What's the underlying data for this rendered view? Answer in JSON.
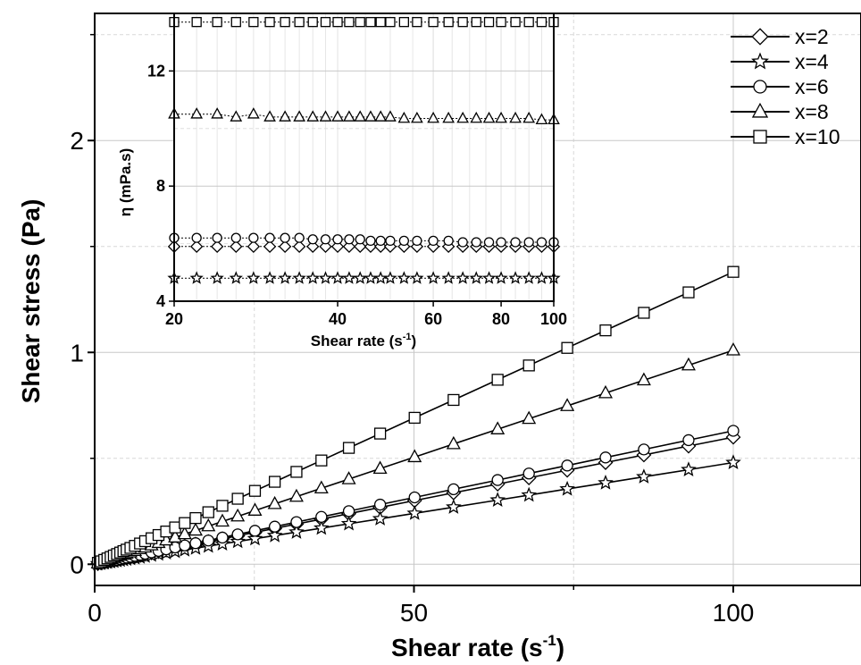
{
  "chart_data": [
    {
      "type": "line",
      "title": "",
      "xlabel": "Shear rate (s",
      "xlabel_sup": "-1",
      "xlabel_end": ")",
      "ylabel": "Shear stress (Pa)",
      "xlim": [
        0,
        120
      ],
      "ylim": [
        -0.1,
        2.6
      ],
      "x_ticks": [
        0,
        50,
        100
      ],
      "y_ticks": [
        0,
        1,
        2
      ],
      "x_tick_labels": [
        "0",
        "50",
        "100"
      ],
      "y_tick_labels": [
        "0",
        "1",
        "2"
      ],
      "grid": true,
      "legend_position": "top-right",
      "series": [
        {
          "name": "x=2",
          "marker": "diamond",
          "viscosity_mPas": 6.0
        },
        {
          "name": "x=4",
          "marker": "star",
          "viscosity_mPas": 4.8
        },
        {
          "name": "x=6",
          "marker": "circle",
          "viscosity_mPas": 6.3
        },
        {
          "name": "x=8",
          "marker": "triangle",
          "viscosity_mPas": 10.1
        },
        {
          "name": "x=10",
          "marker": "square",
          "viscosity_mPas": 13.8
        }
      ],
      "shear_rate_points": [
        0.5,
        1,
        1.5,
        2,
        2.5,
        3,
        3.5,
        4,
        4.5,
        5,
        5.6,
        6.3,
        7.1,
        7.9,
        8.9,
        10,
        11.2,
        12.6,
        14.1,
        15.8,
        17.8,
        20,
        22.4,
        25.1,
        28.2,
        31.6,
        35.5,
        39.8,
        44.7,
        50.1,
        56.2,
        63.1,
        68,
        74,
        80,
        86,
        93,
        100
      ]
    },
    {
      "type": "line",
      "title": "",
      "xlabel": "Shear rate (s",
      "xlabel_sup": "-1",
      "xlabel_end": ")",
      "ylabel": "η (mPa.s)",
      "x_scale": "log",
      "xlim": [
        20,
        100
      ],
      "ylim": [
        4,
        14
      ],
      "x_ticks": [
        20,
        40,
        60,
        80,
        100
      ],
      "y_ticks": [
        4,
        8,
        12
      ],
      "x_tick_labels": [
        "20",
        "40",
        "60",
        "80",
        "100"
      ],
      "y_tick_labels": [
        "4",
        "8",
        "12"
      ],
      "grid": true,
      "x": [
        20,
        22,
        24,
        26,
        28,
        30,
        32,
        34,
        36,
        38,
        40,
        42,
        44,
        46,
        48,
        50,
        53,
        56,
        60,
        64,
        68,
        72,
        76,
        80,
        85,
        90,
        95,
        100
      ],
      "series": [
        {
          "name": "x=2",
          "marker": "diamond",
          "values": [
            5.9,
            5.9,
            5.9,
            5.9,
            5.9,
            5.9,
            5.9,
            5.9,
            5.9,
            5.9,
            5.9,
            5.9,
            5.9,
            5.9,
            5.9,
            5.9,
            5.9,
            5.9,
            5.9,
            5.9,
            5.9,
            5.9,
            5.9,
            5.9,
            5.9,
            5.9,
            5.9,
            5.9
          ]
        },
        {
          "name": "x=4",
          "marker": "star",
          "values": [
            4.8,
            4.8,
            4.8,
            4.8,
            4.8,
            4.8,
            4.8,
            4.8,
            4.8,
            4.8,
            4.8,
            4.8,
            4.8,
            4.8,
            4.8,
            4.8,
            4.8,
            4.8,
            4.8,
            4.8,
            4.8,
            4.8,
            4.8,
            4.8,
            4.8,
            4.8,
            4.8,
            4.8
          ]
        },
        {
          "name": "x=6",
          "marker": "circle",
          "values": [
            6.2,
            6.2,
            6.2,
            6.2,
            6.2,
            6.2,
            6.2,
            6.2,
            6.15,
            6.15,
            6.15,
            6.15,
            6.15,
            6.1,
            6.1,
            6.1,
            6.1,
            6.1,
            6.1,
            6.1,
            6.05,
            6.05,
            6.05,
            6.05,
            6.05,
            6.05,
            6.05,
            6.05
          ]
        },
        {
          "name": "x=8",
          "marker": "triangle",
          "values": [
            10.5,
            10.5,
            10.5,
            10.4,
            10.5,
            10.4,
            10.4,
            10.4,
            10.4,
            10.4,
            10.4,
            10.4,
            10.4,
            10.4,
            10.4,
            10.4,
            10.35,
            10.35,
            10.35,
            10.35,
            10.35,
            10.35,
            10.35,
            10.35,
            10.35,
            10.35,
            10.3,
            10.3
          ]
        },
        {
          "name": "x=10",
          "marker": "square",
          "values": [
            13.7,
            13.7,
            13.7,
            13.7,
            13.7,
            13.7,
            13.7,
            13.7,
            13.7,
            13.7,
            13.7,
            13.7,
            13.7,
            13.7,
            13.7,
            13.7,
            13.7,
            13.7,
            13.7,
            13.7,
            13.7,
            13.7,
            13.7,
            13.7,
            13.7,
            13.7,
            13.7,
            13.7
          ]
        }
      ]
    }
  ]
}
